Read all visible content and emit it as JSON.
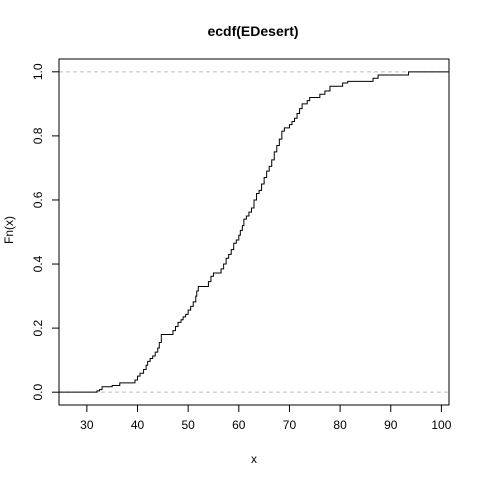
{
  "chart_data": {
    "type": "line",
    "title": "ecdf(EDesert)",
    "xlabel": "x",
    "ylabel": "Fn(x)",
    "xlim": [
      24.5,
      101.5
    ],
    "ylim": [
      -0.04,
      1.04
    ],
    "x_ticks": [
      30,
      40,
      50,
      60,
      70,
      80,
      90,
      100
    ],
    "y_ticks": [
      0.0,
      0.2,
      0.4,
      0.6,
      0.8,
      1.0
    ],
    "x_tick_labels": [
      "30",
      "40",
      "50",
      "60",
      "70",
      "80",
      "90",
      "100"
    ],
    "y_tick_labels": [
      "0.0",
      "0.2",
      "0.4",
      "0.6",
      "0.8",
      "1.0"
    ],
    "reference_lines": [
      0.0,
      1.0
    ],
    "reference_line_color": "#bebebe",
    "line_color": "#000000",
    "series": [
      {
        "step_points": [
          [
            32.0,
            0.004
          ],
          [
            32.5,
            0.008
          ],
          [
            33.0,
            0.017
          ],
          [
            35.0,
            0.021
          ],
          [
            36.5,
            0.029
          ],
          [
            39.5,
            0.038
          ],
          [
            40.0,
            0.05
          ],
          [
            40.5,
            0.059
          ],
          [
            41.2,
            0.071
          ],
          [
            41.7,
            0.084
          ],
          [
            42.0,
            0.096
          ],
          [
            42.5,
            0.105
          ],
          [
            43.0,
            0.113
          ],
          [
            43.5,
            0.125
          ],
          [
            44.0,
            0.138
          ],
          [
            44.3,
            0.155
          ],
          [
            44.7,
            0.18
          ],
          [
            47.0,
            0.192
          ],
          [
            47.5,
            0.205
          ],
          [
            48.0,
            0.218
          ],
          [
            48.6,
            0.226
          ],
          [
            49.0,
            0.235
          ],
          [
            49.5,
            0.243
          ],
          [
            50.0,
            0.256
          ],
          [
            50.5,
            0.268
          ],
          [
            51.0,
            0.282
          ],
          [
            51.5,
            0.3
          ],
          [
            51.7,
            0.316
          ],
          [
            52.0,
            0.33
          ],
          [
            54.0,
            0.345
          ],
          [
            54.5,
            0.362
          ],
          [
            55.0,
            0.372
          ],
          [
            56.5,
            0.385
          ],
          [
            57.0,
            0.4
          ],
          [
            57.5,
            0.418
          ],
          [
            58.0,
            0.43
          ],
          [
            58.5,
            0.445
          ],
          [
            59.0,
            0.465
          ],
          [
            59.5,
            0.475
          ],
          [
            60.0,
            0.49
          ],
          [
            60.3,
            0.505
          ],
          [
            60.7,
            0.52
          ],
          [
            61.0,
            0.54
          ],
          [
            61.5,
            0.55
          ],
          [
            62.0,
            0.562
          ],
          [
            62.5,
            0.575
          ],
          [
            63.0,
            0.6
          ],
          [
            63.5,
            0.62
          ],
          [
            64.0,
            0.63
          ],
          [
            64.5,
            0.65
          ],
          [
            65.0,
            0.67
          ],
          [
            65.5,
            0.69
          ],
          [
            66.0,
            0.705
          ],
          [
            66.5,
            0.725
          ],
          [
            67.0,
            0.75
          ],
          [
            67.5,
            0.77
          ],
          [
            68.0,
            0.79
          ],
          [
            68.5,
            0.815
          ],
          [
            69.0,
            0.825
          ],
          [
            70.0,
            0.835
          ],
          [
            70.5,
            0.845
          ],
          [
            71.0,
            0.855
          ],
          [
            71.5,
            0.87
          ],
          [
            72.0,
            0.885
          ],
          [
            72.5,
            0.9
          ],
          [
            73.5,
            0.91
          ],
          [
            74.0,
            0.92
          ],
          [
            76.0,
            0.93
          ],
          [
            77.0,
            0.94
          ],
          [
            78.0,
            0.955
          ],
          [
            80.5,
            0.965
          ],
          [
            81.5,
            0.97
          ],
          [
            86.5,
            0.98
          ],
          [
            87.5,
            0.99
          ],
          [
            93.5,
            1.0
          ]
        ]
      }
    ]
  }
}
